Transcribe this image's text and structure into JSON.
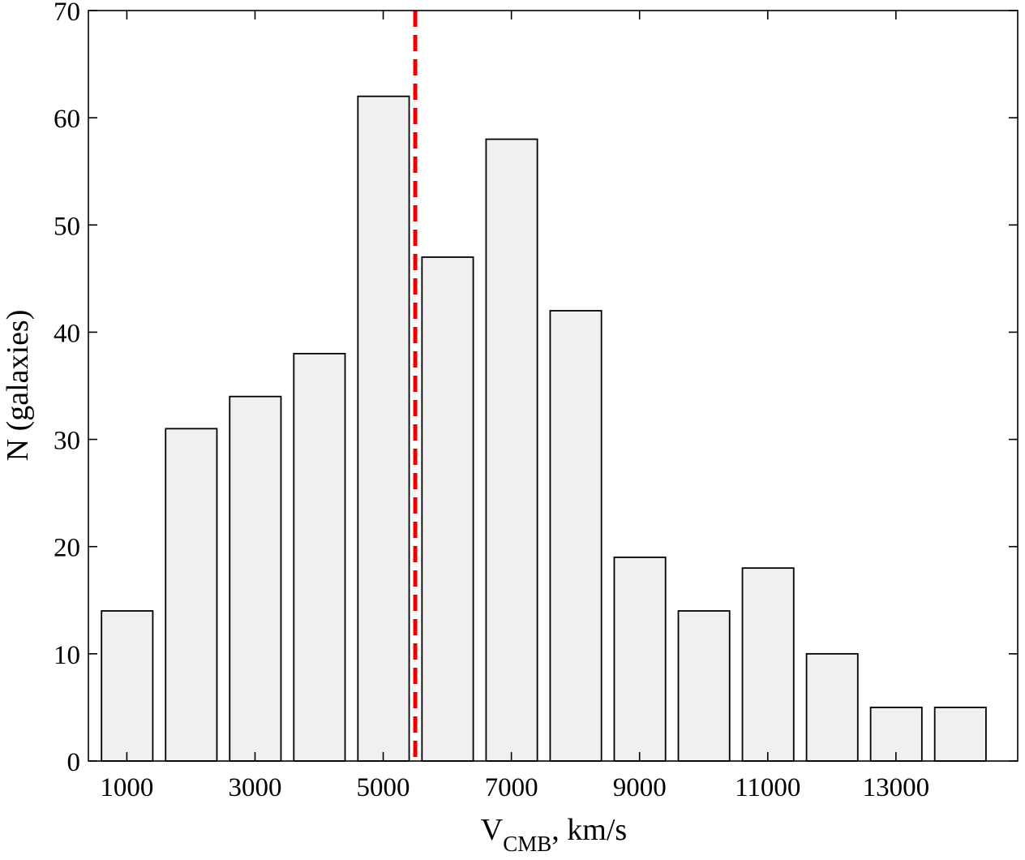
{
  "chart_data": {
    "type": "bar",
    "x": [
      1000,
      2000,
      3000,
      4000,
      5000,
      6000,
      7000,
      8000,
      9000,
      10000,
      11000,
      12000,
      13000,
      14000
    ],
    "values": [
      14,
      31,
      34,
      38,
      62,
      47,
      58,
      42,
      19,
      14,
      18,
      10,
      5,
      5
    ],
    "xlim": [
      400,
      14900
    ],
    "ylim": [
      0,
      70
    ],
    "x_ticks": [
      "1000",
      "3000",
      "5000",
      "7000",
      "9000",
      "11000",
      "13000"
    ],
    "y_ticks": [
      "0",
      "10",
      "20",
      "30",
      "40",
      "50",
      "60",
      "70"
    ],
    "xlabel_main": "V",
    "xlabel_sub": "CMB",
    "xlabel_rest": ", km/s",
    "ylabel": "N (galaxies)",
    "reference_line": {
      "x": 5500,
      "style": "dashed",
      "color": "#ee0000"
    },
    "bar_fill": "#f0f0f0",
    "bar_stroke": "#000000",
    "grid": false
  }
}
